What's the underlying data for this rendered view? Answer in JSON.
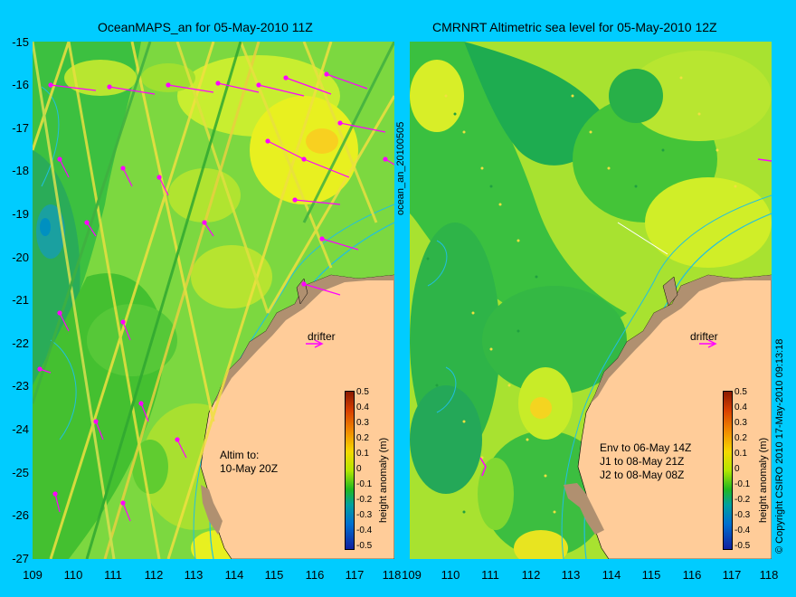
{
  "left_panel": {
    "title": "OceanMAPS_an for 05-May-2010 11Z",
    "vertical_label": "ocean_an_20100505",
    "drifter_label": "drifter",
    "annotation": "Altim to:\n10-May 20Z"
  },
  "right_panel": {
    "title": "CMRNRT Altimetric sea level  for 05-May-2010 12Z",
    "drifter_label": "drifter",
    "annotation": "Env to 06-May 14Z\nJ1 to 08-May 21Z\nJ2 to 08-May 08Z"
  },
  "y_ticks": [
    "-15",
    "-16",
    "-17",
    "-18",
    "-19",
    "-20",
    "-21",
    "-22",
    "-23",
    "-24",
    "-25",
    "-26",
    "-27"
  ],
  "x_ticks_left": [
    "109",
    "110",
    "111",
    "112",
    "113",
    "114",
    "115",
    "116",
    "117",
    "118"
  ],
  "x_ticks_right": [
    "109",
    "110",
    "111",
    "112",
    "113",
    "114",
    "115",
    "116",
    "117",
    "118"
  ],
  "colorbar": {
    "title": "height anomaly (m)",
    "labels": [
      "0.5",
      "0.4",
      "0.3",
      "0.2",
      "0.1",
      "0",
      "-0.1",
      "-0.2",
      "-0.3",
      "-0.4",
      "-0.5"
    ]
  },
  "copyright": "© Copyright CSIRO 2010  17-May-2010 09:13:18",
  "colors": {
    "background": "#00ccff",
    "land": "#ffcc99",
    "shelf_line": "#20c0e0",
    "vector": "#ff00ff"
  }
}
